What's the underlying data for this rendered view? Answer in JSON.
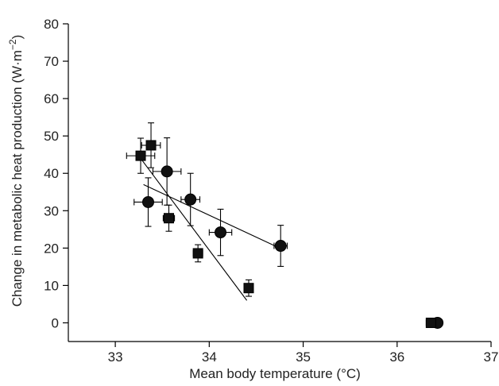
{
  "chart_data": {
    "type": "scatter",
    "xlabel": "Mean body temperature (°C)",
    "ylabel_main": "Change in metabolic heat production (W",
    "ylabel_unit_mid": "·m",
    "ylabel_sup": "−2",
    "ylabel_end": ")",
    "xlim": [
      32.5,
      37
    ],
    "ylim": [
      -5,
      80
    ],
    "xticks": [
      33,
      34,
      35,
      36,
      37
    ],
    "yticks": [
      0,
      10,
      20,
      30,
      40,
      50,
      60,
      70,
      80
    ],
    "grid": false,
    "series": [
      {
        "marker": "circle",
        "points": [
          {
            "x": 33.35,
            "y": 32.3,
            "xerr": 0.15,
            "yerr": 6.5
          },
          {
            "x": 33.55,
            "y": 40.5,
            "xerr": 0.15,
            "yerr": 9.0
          },
          {
            "x": 33.8,
            "y": 33.0,
            "xerr": 0.1,
            "yerr": 7.0
          },
          {
            "x": 34.12,
            "y": 24.2,
            "xerr": 0.12,
            "yerr": 6.2
          },
          {
            "x": 34.76,
            "y": 20.6,
            "xerr": 0.07,
            "yerr": 5.5
          },
          {
            "x": 36.43,
            "y": 0.0,
            "xerr": 0.05,
            "yerr": 0.0
          }
        ],
        "fit": {
          "x1": 33.3,
          "y1": 37.0,
          "x2": 34.75,
          "y2": 20.0
        }
      },
      {
        "marker": "square",
        "points": [
          {
            "x": 33.27,
            "y": 44.7,
            "xerr": 0.15,
            "yerr": 4.7
          },
          {
            "x": 33.38,
            "y": 47.5,
            "xerr": 0.1,
            "yerr": 6.0
          },
          {
            "x": 33.57,
            "y": 28.0,
            "xerr": 0.06,
            "yerr": 3.5
          },
          {
            "x": 33.88,
            "y": 18.6,
            "xerr": 0.05,
            "yerr": 2.3
          },
          {
            "x": 34.42,
            "y": 9.3,
            "xerr": 0.03,
            "yerr": 2.2
          },
          {
            "x": 36.36,
            "y": 0.0,
            "xerr": 0.05,
            "yerr": 0.0
          }
        ],
        "fit": {
          "x1": 33.27,
          "y1": 44.0,
          "x2": 34.4,
          "y2": 6.0
        }
      }
    ]
  }
}
